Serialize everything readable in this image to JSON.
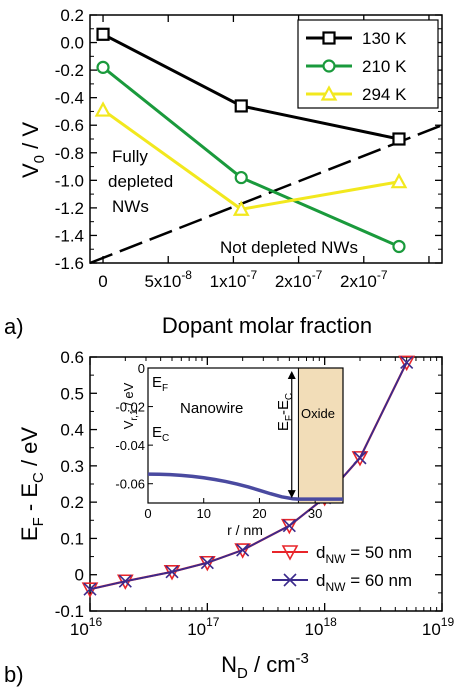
{
  "chart_data": [
    {
      "panel_label": "a)",
      "type": "line",
      "xlabel": "Dopant molar fraction",
      "ylabel_main": "V",
      "ylabel_sub": "0",
      "ylabel_tail": " / V",
      "xlim": [
        -1e-08,
        2.6e-07
      ],
      "ylim": [
        -1.6,
        0.2
      ],
      "x_ticks": [
        {
          "value": 0,
          "label": "0",
          "sup": ""
        },
        {
          "value": 5e-08,
          "label": "5x10",
          "sup": "-8"
        },
        {
          "value": 1e-07,
          "label": "1x10",
          "sup": "-7"
        },
        {
          "value": 1.5e-07,
          "label": "2x10",
          "sup": "-7"
        },
        {
          "value": 2e-07,
          "label": "2x10",
          "sup": "-7"
        },
        {
          "value": 2.5e-07,
          "label": "",
          "sup": ""
        }
      ],
      "y_ticks": [
        0.2,
        0.0,
        -0.2,
        -0.4,
        -0.6,
        -0.8,
        -1.0,
        -1.2,
        -1.4,
        -1.6
      ],
      "y_tick_labels": [
        "0.2",
        "0.0",
        "-0.2",
        "-0.4",
        "-0.6",
        "-0.8",
        "-1.0",
        "-1.2",
        "-1.4",
        "-1.6"
      ],
      "series": [
        {
          "name": "130 K",
          "color": "#000000",
          "marker": "square",
          "x": [
            0,
            1.06e-07,
            2.27e-07
          ],
          "y": [
            0.06,
            -0.46,
            -0.7
          ]
        },
        {
          "name": "210 K",
          "color": "#1a9a3c",
          "marker": "circle",
          "x": [
            0,
            1.06e-07,
            2.27e-07
          ],
          "y": [
            -0.18,
            -0.98,
            -1.48
          ]
        },
        {
          "name": "294 K",
          "color": "#f2e81e",
          "marker": "triangle",
          "x": [
            0,
            1.06e-07,
            2.27e-07
          ],
          "y": [
            -0.49,
            -1.21,
            -1.01
          ]
        }
      ],
      "dashed_line": {
        "x": [
          -1e-08,
          2.6e-07
        ],
        "y": [
          -1.6,
          -0.6
        ]
      },
      "annotations": {
        "fully_line1": "Fully",
        "fully_line2": "depleted",
        "fully_line3": "NWs",
        "not_depleted": "Not depleted NWs"
      },
      "legend": "top-right"
    },
    {
      "panel_label": "b)",
      "type": "line",
      "xscale": "log",
      "xlabel_main": "N",
      "xlabel_sub": "D",
      "xlabel_tail": " / cm",
      "xlabel_sup": "-3",
      "ylabel_text": "E",
      "ylabel_sub1": "F",
      "ylabel_mid": " - E",
      "ylabel_sub2": "C",
      "ylabel_tail": "  / eV",
      "xlim": [
        1e+16,
        1e+19
      ],
      "ylim": [
        -0.1,
        0.6
      ],
      "x_ticks": [
        {
          "value": 1e+16,
          "base": "10",
          "sup": "16"
        },
        {
          "value": 1e+17,
          "base": "10",
          "sup": "17"
        },
        {
          "value": 1e+18,
          "base": "10",
          "sup": "18"
        },
        {
          "value": 1e+19,
          "base": "10",
          "sup": "19"
        }
      ],
      "y_ticks": [
        -0.1,
        0.0,
        0.1,
        0.2,
        0.3,
        0.4,
        0.5,
        0.6
      ],
      "y_tick_labels": [
        "-0.1",
        "0",
        "0.1",
        "0.2",
        "0.3",
        "0.4",
        "0.5",
        "0.6"
      ],
      "series": [
        {
          "name_main": "d",
          "name_sub": "NW",
          "name_tail": " = 50 nm",
          "color": "#e8252a",
          "marker": "triangle-down",
          "x": [
            1e+16,
            2e+16,
            5e+16,
            1e+17,
            2e+17,
            5e+17,
            1e+18,
            2e+18,
            5e+18
          ],
          "y": [
            -0.04,
            -0.018,
            0.008,
            0.033,
            0.068,
            0.135,
            0.212,
            0.322,
            0.585
          ]
        },
        {
          "name_main": "d",
          "name_sub": "NW",
          "name_tail": " = 60 nm",
          "color": "#3b2a8c",
          "marker": "x",
          "x": [
            1e+16,
            2e+16,
            5e+16,
            1e+17,
            2e+17,
            5e+17,
            1e+18,
            2e+18,
            5e+18
          ],
          "y": [
            -0.04,
            -0.018,
            0.008,
            0.033,
            0.068,
            0.135,
            0.212,
            0.322,
            0.585
          ]
        }
      ],
      "legend": "bottom-right",
      "inset": {
        "xlabel": "r / nm",
        "ylabel_main": "V",
        "ylabel_sub": "r,1",
        "ylabel_tail": " / eV",
        "xlim": [
          0,
          35
        ],
        "ylim": [
          -0.07,
          0.0
        ],
        "x_ticks": [
          0,
          10,
          20,
          30
        ],
        "y_ticks": [
          0,
          -0.02,
          -0.04,
          -0.06
        ],
        "y_tick_labels": [
          "0",
          "-0.02",
          "-0.04",
          "-0.06"
        ],
        "curve": {
          "color": "#4a4aa0",
          "x": [
            0,
            2,
            4,
            6,
            8,
            10,
            12,
            14,
            16,
            18,
            20,
            22,
            24,
            26,
            27,
            28,
            30,
            32,
            35
          ],
          "y": [
            -0.055,
            -0.0551,
            -0.0553,
            -0.0557,
            -0.0562,
            -0.0569,
            -0.0578,
            -0.0589,
            -0.0602,
            -0.0617,
            -0.0634,
            -0.0652,
            -0.0668,
            -0.0678,
            -0.068,
            -0.068,
            -0.068,
            -0.068,
            -0.068
          ]
        },
        "oxide_start": 27,
        "oxide_color": "#f2ddb8",
        "labels": {
          "ef_main": "E",
          "ef_sub": "F",
          "ec_main": "E",
          "ec_sub": "C",
          "nanowire": "Nanowire",
          "oxide": "Oxide",
          "efec_main": "E",
          "efec_sub1": "F",
          "efec_mid": "-E",
          "efec_sub2": "C"
        }
      }
    }
  ]
}
